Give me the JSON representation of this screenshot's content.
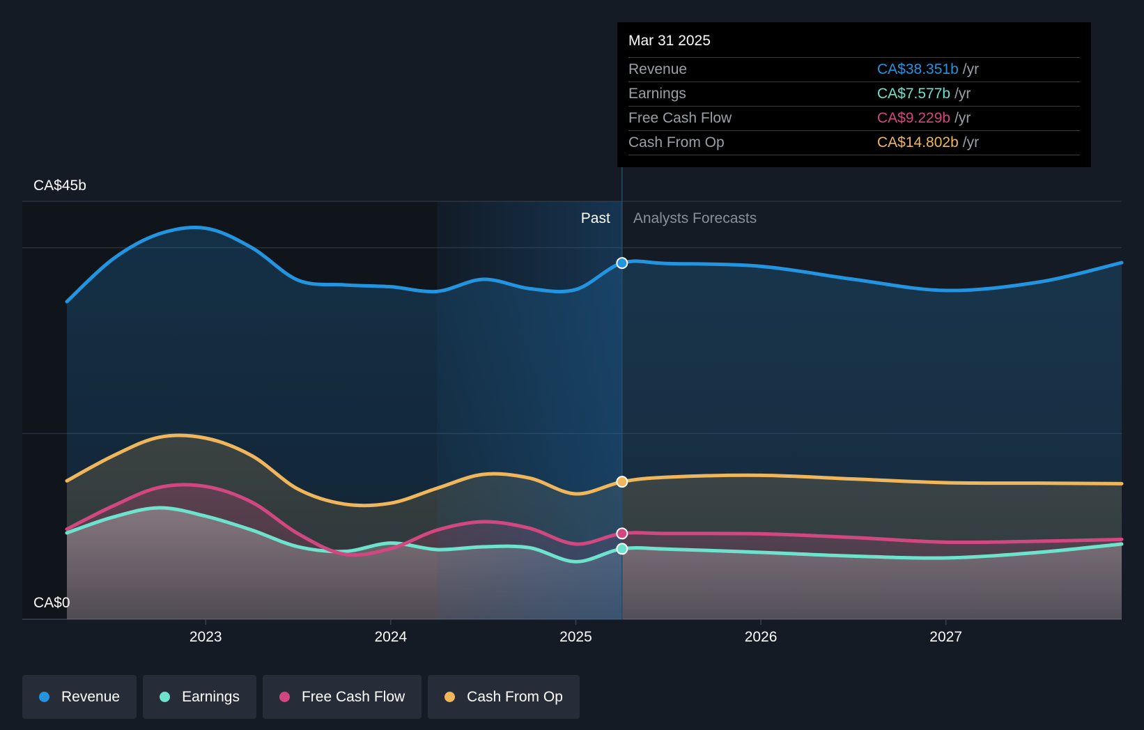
{
  "colors": {
    "revenue": "#2394e0",
    "earnings": "#6ee2cd",
    "free_cash_flow": "#d1477f",
    "cash_from_op": "#f0b65c",
    "background": "#151b24",
    "past_region": "#10141b",
    "highlight": "#1c4e7a"
  },
  "tooltip": {
    "date": "Mar 31 2025",
    "rows": [
      {
        "label": "Revenue",
        "value": "CA$38.351b",
        "unit": "/yr",
        "color": "#2394e0"
      },
      {
        "label": "Earnings",
        "value": "CA$7.577b",
        "unit": "/yr",
        "color": "#6ee2cd"
      },
      {
        "label": "Free Cash Flow",
        "value": "CA$9.229b",
        "unit": "/yr",
        "color": "#d1477f"
      },
      {
        "label": "Cash From Op",
        "value": "CA$14.802b",
        "unit": "/yr",
        "color": "#f0b65c"
      }
    ]
  },
  "legend": [
    {
      "label": "Revenue",
      "icon": "revenue-dot-icon",
      "color": "#2394e0"
    },
    {
      "label": "Earnings",
      "icon": "earnings-dot-icon",
      "color": "#6ee2cd"
    },
    {
      "label": "Free Cash Flow",
      "icon": "free-cash-flow-dot-icon",
      "color": "#d1477f"
    },
    {
      "label": "Cash From Op",
      "icon": "cash-from-op-dot-icon",
      "color": "#f0b65c"
    }
  ],
  "chart_data": {
    "type": "area",
    "title": "",
    "xlabel": "",
    "ylabel": "",
    "y_unit": "CA$ billions per year",
    "ylim": [
      0,
      45
    ],
    "xlim": [
      2022.25,
      2027.95
    ],
    "y_tick_labels": [
      {
        "value": 45,
        "label": "CA$45b"
      },
      {
        "value": 0,
        "label": "CA$0"
      }
    ],
    "gridlines": [
      0,
      20,
      40,
      45
    ],
    "x_ticks": [
      {
        "value": 2023,
        "label": "2023"
      },
      {
        "value": 2024,
        "label": "2024"
      },
      {
        "value": 2025,
        "label": "2025"
      },
      {
        "value": 2026,
        "label": "2026"
      },
      {
        "value": 2027,
        "label": "2027"
      }
    ],
    "past_label": "Past",
    "forecast_label": "Analysts Forecasts",
    "past_end": 2025.25,
    "highlight_start": 2024.25,
    "marker_x": 2025.25,
    "series": [
      {
        "name": "Revenue",
        "key": "revenue",
        "points": [
          [
            2022.25,
            34.2
          ],
          [
            2022.5,
            38.8
          ],
          [
            2022.75,
            41.5
          ],
          [
            2023.0,
            42.1
          ],
          [
            2023.25,
            40.0
          ],
          [
            2023.5,
            36.5
          ],
          [
            2023.75,
            36.0
          ],
          [
            2024.0,
            35.8
          ],
          [
            2024.25,
            35.3
          ],
          [
            2024.5,
            36.6
          ],
          [
            2024.75,
            35.6
          ],
          [
            2025.0,
            35.5
          ],
          [
            2025.25,
            38.35
          ],
          [
            2025.5,
            38.3
          ],
          [
            2026.0,
            38.0
          ],
          [
            2026.5,
            36.6
          ],
          [
            2027.0,
            35.4
          ],
          [
            2027.5,
            36.3
          ],
          [
            2027.95,
            38.4
          ]
        ]
      },
      {
        "name": "Cash From Op",
        "key": "cash_from_op",
        "points": [
          [
            2022.25,
            14.9
          ],
          [
            2022.5,
            17.6
          ],
          [
            2022.75,
            19.6
          ],
          [
            2023.0,
            19.5
          ],
          [
            2023.25,
            17.6
          ],
          [
            2023.5,
            14.0
          ],
          [
            2023.75,
            12.4
          ],
          [
            2024.0,
            12.5
          ],
          [
            2024.25,
            14.1
          ],
          [
            2024.5,
            15.6
          ],
          [
            2024.75,
            15.2
          ],
          [
            2025.0,
            13.5
          ],
          [
            2025.25,
            14.8
          ],
          [
            2025.5,
            15.3
          ],
          [
            2026.0,
            15.5
          ],
          [
            2026.5,
            15.1
          ],
          [
            2027.0,
            14.7
          ],
          [
            2027.5,
            14.65
          ],
          [
            2027.95,
            14.6
          ]
        ]
      },
      {
        "name": "Free Cash Flow",
        "key": "free_cash_flow",
        "points": [
          [
            2022.25,
            9.7
          ],
          [
            2022.5,
            12.2
          ],
          [
            2022.75,
            14.2
          ],
          [
            2023.0,
            14.3
          ],
          [
            2023.25,
            12.6
          ],
          [
            2023.5,
            9.2
          ],
          [
            2023.75,
            7.0
          ],
          [
            2024.0,
            7.6
          ],
          [
            2024.25,
            9.6
          ],
          [
            2024.5,
            10.5
          ],
          [
            2024.75,
            9.8
          ],
          [
            2025.0,
            8.1
          ],
          [
            2025.25,
            9.23
          ],
          [
            2025.5,
            9.23
          ],
          [
            2026.0,
            9.2
          ],
          [
            2026.5,
            8.8
          ],
          [
            2027.0,
            8.3
          ],
          [
            2027.5,
            8.4
          ],
          [
            2027.95,
            8.6
          ]
        ]
      },
      {
        "name": "Earnings",
        "key": "earnings",
        "points": [
          [
            2022.25,
            9.3
          ],
          [
            2022.5,
            11.0
          ],
          [
            2022.75,
            12.0
          ],
          [
            2023.0,
            11.1
          ],
          [
            2023.25,
            9.6
          ],
          [
            2023.5,
            7.8
          ],
          [
            2023.75,
            7.3
          ],
          [
            2024.0,
            8.2
          ],
          [
            2024.25,
            7.5
          ],
          [
            2024.5,
            7.8
          ],
          [
            2024.75,
            7.7
          ],
          [
            2025.0,
            6.2
          ],
          [
            2025.25,
            7.58
          ],
          [
            2025.5,
            7.55
          ],
          [
            2026.0,
            7.2
          ],
          [
            2026.5,
            6.8
          ],
          [
            2027.0,
            6.6
          ],
          [
            2027.5,
            7.2
          ],
          [
            2027.95,
            8.1
          ]
        ]
      }
    ]
  }
}
